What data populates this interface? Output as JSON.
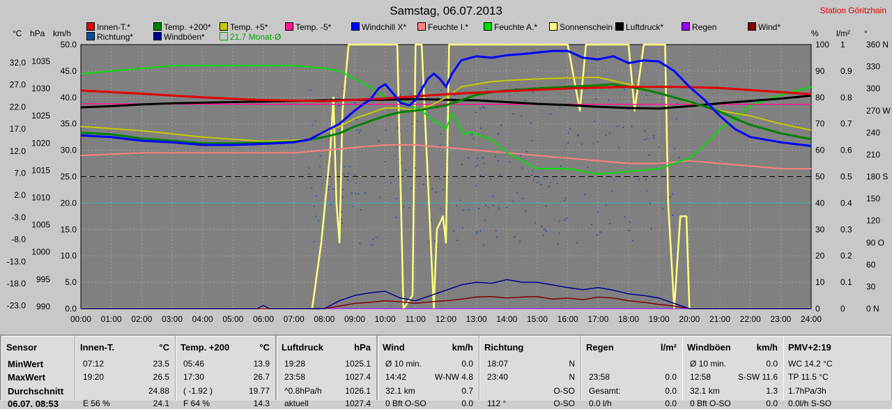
{
  "header": {
    "title": "Samstag, 06.07.2013",
    "station": "Station Göritzhain"
  },
  "legend": [
    {
      "label": "Innen-T.*",
      "color": "#e00000"
    },
    {
      "label": "Temp. +200*",
      "color": "#008000"
    },
    {
      "label": "Temp. +5*",
      "color": "#c8c800"
    },
    {
      "label": "Temp. -5*",
      "color": "#ff1493"
    },
    {
      "label": "Windchill X*",
      "color": "#0000ff"
    },
    {
      "label": "Feuchte I.*",
      "color": "#ff8080"
    },
    {
      "label": "Feuchte A.*",
      "color": "#00e000"
    },
    {
      "label": "Sonnenschein",
      "color": "#ffff80"
    },
    {
      "label": "Luftdruck*",
      "color": "#000000"
    },
    {
      "label": "Regen",
      "color": "#9900ff"
    },
    {
      "label": "Wind*",
      "color": "#800000"
    },
    {
      "label": "Richtung*",
      "color": "#0050a0"
    },
    {
      "label": "Windböen*",
      "color": "#000090"
    },
    {
      "label": "21.7 Monat-Ø",
      "color": "#00a000"
    }
  ],
  "units": {
    "temp": "°C",
    "pressure": "hPa",
    "wind": "km/h",
    "humidity": "%",
    "rain": "l/m²",
    "direction": "°"
  },
  "axes": {
    "temp_ticks": [
      "32.0",
      "27.0",
      "22.0",
      "17.0",
      "12.0",
      "7.0",
      "2.0",
      "-3.0",
      "-8.0",
      "-13.0",
      "-18.0",
      "-23.0"
    ],
    "pressure_ticks": [
      "1035",
      "1030",
      "1025",
      "1020",
      "1015",
      "1010",
      "1005",
      "1000",
      "995",
      "990"
    ],
    "wind_ticks": [
      "50.0",
      "45.0",
      "40.0",
      "35.0",
      "30.0",
      "25.0",
      "20.0",
      "15.0",
      "10.0",
      "5.0",
      "0.0"
    ],
    "humidity_ticks": [
      "100",
      "90",
      "80",
      "70",
      "60",
      "50",
      "40",
      "30",
      "20",
      "10",
      "0"
    ],
    "rain_ticks": [
      "1",
      "0.9",
      "0.8",
      "0.7",
      "0.6",
      "0.5",
      "0.4",
      "0.3",
      "0.2",
      "0.1",
      "0"
    ],
    "direction_ticks": [
      "360 N",
      "330",
      "300",
      "270 W",
      "240",
      "210",
      "180 S",
      "150",
      "120",
      "90 O",
      "60",
      "30",
      "0 N"
    ],
    "x_ticks": [
      "00:00",
      "01:00",
      "02:00",
      "03:00",
      "04:00",
      "05:00",
      "06:00",
      "07:00",
      "08:00",
      "09:00",
      "10:00",
      "11:00",
      "12:00",
      "13:00",
      "14:00",
      "15:00",
      "16:00",
      "17:00",
      "18:00",
      "19:00",
      "20:00",
      "21:00",
      "22:00",
      "23:00",
      "24:00"
    ]
  },
  "chart_data": {
    "type": "line",
    "title": "Samstag, 06.07.2013",
    "x_unit": "hour",
    "xlim": [
      0,
      24
    ],
    "ylim_wind": [
      0,
      50
    ],
    "ylim_temp": [
      -23,
      32
    ],
    "ylim_pressure": [
      990,
      1035
    ],
    "ylim_humidity": [
      0,
      100
    ],
    "grid": true,
    "reference_lines": [
      {
        "name": "21.7 Monat-Ø",
        "axis": "temp",
        "value": 21.7
      }
    ],
    "series": [
      {
        "name": "Innen-T.*",
        "axis": "wind",
        "x": [
          0,
          2,
          4,
          6,
          8,
          10,
          11,
          12,
          14,
          16,
          18,
          19.5,
          21,
          22,
          23,
          24
        ],
        "y": [
          41.3,
          40.7,
          40.0,
          39.5,
          39.3,
          39.8,
          40.2,
          40.6,
          41.2,
          41.7,
          42.0,
          42.0,
          41.8,
          41.4,
          41.0,
          40.6
        ]
      },
      {
        "name": "Temp. +200*",
        "axis": "wind",
        "x": [
          0,
          1,
          2,
          3,
          4,
          5,
          6,
          7,
          7.5,
          8,
          8.5,
          9,
          9.5,
          10,
          10.5,
          11,
          11.5,
          12,
          12.5,
          13,
          13.5,
          14,
          15,
          16,
          17,
          17.5,
          18,
          18.5,
          19,
          19.5,
          20,
          20.5,
          21,
          21.5,
          22,
          23,
          24
        ],
        "y": [
          33.3,
          33.0,
          32.2,
          31.8,
          31.3,
          31.3,
          31.4,
          31.6,
          32.0,
          32.5,
          33.2,
          34.5,
          35.5,
          36.5,
          37.2,
          37.5,
          38.0,
          38.5,
          39.5,
          40.5,
          41.0,
          41.3,
          41.7,
          42.0,
          42.3,
          42.5,
          42.0,
          41.5,
          40.8,
          40.0,
          39.2,
          38.3,
          37.3,
          36.0,
          34.8,
          33.2,
          32.1
        ]
      },
      {
        "name": "Temp. +5*",
        "axis": "wind",
        "x": [
          0,
          2,
          4,
          6,
          7.5,
          8,
          8.5,
          9,
          9.5,
          10,
          10.5,
          11,
          11.5,
          12,
          12.5,
          13,
          13.5,
          14,
          15,
          16,
          17,
          18,
          19,
          19.5,
          20,
          21,
          22,
          23,
          24
        ],
        "y": [
          34.5,
          33.7,
          32.5,
          31.7,
          32.0,
          33.3,
          34.5,
          36.0,
          37.0,
          38.0,
          38.0,
          37.5,
          38.5,
          40.0,
          42.0,
          42.5,
          43.0,
          43.2,
          43.5,
          43.7,
          43.8,
          42.5,
          40.8,
          40.0,
          39.0,
          37.5,
          36.5,
          35.0,
          33.8
        ]
      },
      {
        "name": "Temp. -5*",
        "axis": "wind",
        "x": [
          0,
          6,
          12,
          18,
          24
        ],
        "y": [
          38.8,
          38.7,
          38.7,
          38.7,
          38.7
        ]
      },
      {
        "name": "Windchill X*",
        "axis": "wind",
        "x": [
          0,
          1,
          2,
          3,
          4,
          5,
          6,
          7,
          7.5,
          8,
          8.5,
          8.8,
          9,
          9.3,
          9.5,
          9.8,
          10,
          10.3,
          10.5,
          10.8,
          11,
          11.2,
          11.4,
          11.6,
          11.8,
          12,
          12.2,
          12.5,
          13,
          13.5,
          14,
          14.5,
          15,
          15.5,
          16,
          16.5,
          17,
          17.5,
          18,
          18.5,
          19,
          19.5,
          20,
          20.5,
          21,
          21.5,
          22,
          23,
          24
        ],
        "y": [
          32.8,
          32.5,
          31.8,
          31.5,
          31.0,
          31.0,
          31.2,
          31.5,
          32.0,
          33.5,
          35.0,
          36.5,
          37.5,
          38.8,
          39.5,
          41.8,
          42.5,
          40.5,
          39.0,
          38.5,
          39.5,
          41.5,
          43.5,
          44.5,
          43.5,
          42.0,
          44.5,
          47.0,
          47.8,
          47.5,
          48.0,
          48.2,
          48.5,
          48.8,
          48.8,
          47.5,
          47.2,
          47.8,
          46.5,
          47.0,
          46.8,
          45.0,
          42.0,
          39.5,
          36.5,
          34.0,
          32.5,
          31.5,
          30.8
        ]
      },
      {
        "name": "Feuchte I.*",
        "axis": "humidity",
        "x": [
          0,
          2,
          4,
          6,
          7,
          8,
          9,
          10,
          11,
          12,
          13,
          14,
          15,
          16,
          17,
          18,
          19,
          20,
          21,
          22,
          23,
          24
        ],
        "y": [
          58,
          59,
          59,
          59,
          59,
          60,
          61,
          62,
          62,
          61,
          60,
          59,
          58,
          57,
          56,
          55,
          55,
          56,
          55,
          54,
          53,
          53
        ]
      },
      {
        "name": "Feuchte A.*",
        "axis": "humidity",
        "x": [
          0,
          1,
          2,
          3,
          4,
          5,
          6,
          7,
          8,
          8.5,
          9,
          9.5,
          10,
          10.5,
          11,
          11.3,
          11.6,
          11.8,
          12,
          12.2,
          12.4,
          12.6,
          12.8,
          13,
          13.5,
          14,
          15,
          16,
          17,
          18,
          19,
          19.5,
          20,
          20.5,
          21,
          21.5,
          22,
          23,
          24
        ],
        "y": [
          89,
          90,
          91,
          92,
          92,
          92,
          92,
          92,
          91,
          90,
          87,
          84,
          80,
          79,
          76,
          74,
          71,
          70,
          68,
          74,
          70,
          66,
          67,
          66,
          64,
          59,
          53,
          53,
          51,
          52,
          53,
          55,
          57,
          62,
          68,
          72,
          77,
          81,
          84
        ]
      },
      {
        "name": "Sonnenschein",
        "axis": "humidity",
        "x": [
          0,
          7.6,
          7.9,
          8.2,
          8.3,
          8.4,
          8.5,
          8.6,
          8.8,
          8.9,
          9.0,
          9.5,
          10.2,
          10.4,
          10.6,
          10.9,
          11.0,
          11.2,
          11.6,
          11.7,
          11.9,
          12.0,
          12.1,
          12.2,
          12.4,
          12.6,
          12.8,
          13,
          14,
          15,
          16,
          16.4,
          16.6,
          16.8,
          17,
          17.5,
          18,
          18.2,
          18.5,
          19,
          19.2,
          19.3,
          19.5,
          19.7,
          19.9,
          20,
          20.1,
          24
        ],
        "y": [
          0,
          0,
          25,
          60,
          80,
          40,
          25,
          75,
          100,
          100,
          100,
          100,
          100,
          100,
          0,
          5,
          100,
          100,
          0,
          30,
          35,
          25,
          100,
          100,
          100,
          100,
          100,
          100,
          100,
          100,
          100,
          75,
          100,
          100,
          100,
          100,
          100,
          75,
          100,
          100,
          100,
          40,
          0,
          35,
          35,
          0,
          0,
          0
        ]
      },
      {
        "name": "Luftdruck*",
        "axis": "pressure",
        "x": [
          0,
          1,
          2,
          3,
          4,
          5,
          6,
          7,
          8,
          9,
          10,
          11,
          12,
          13,
          14,
          15,
          16,
          17,
          18,
          19,
          20,
          21,
          22,
          23,
          24
        ],
        "y": [
          1024.3,
          1024.5,
          1024.8,
          1025.0,
          1025.1,
          1025.2,
          1025.3,
          1025.4,
          1025.5,
          1025.6,
          1025.6,
          1025.7,
          1025.6,
          1025.5,
          1025.2,
          1024.9,
          1024.7,
          1024.4,
          1024.2,
          1024.1,
          1024.5,
          1025.0,
          1025.4,
          1025.8,
          1026.3
        ]
      },
      {
        "name": "Regen",
        "axis": "rain",
        "x": [
          0,
          24
        ],
        "y": [
          0,
          0
        ]
      },
      {
        "name": "Wind*",
        "axis": "wind",
        "x": [
          0,
          8,
          8.5,
          9,
          9.5,
          10,
          10.5,
          11,
          11.5,
          12,
          12.5,
          13,
          13.5,
          14,
          14.5,
          15,
          15.5,
          16,
          16.5,
          17,
          17.5,
          18,
          18.5,
          19,
          19.5,
          20,
          24
        ],
        "y": [
          0,
          0,
          0.5,
          1.0,
          1.2,
          1.5,
          1.3,
          1.0,
          1.3,
          1.5,
          1.8,
          2.2,
          2.3,
          2.0,
          2.2,
          2.3,
          1.8,
          2.0,
          1.7,
          2.2,
          2.0,
          1.5,
          1.2,
          0.8,
          0.5,
          0,
          0
        ]
      },
      {
        "name": "Windböen*",
        "axis": "wind",
        "x": [
          0,
          5.8,
          6.0,
          6.2,
          8,
          8.5,
          9,
          9.5,
          10,
          10.5,
          11,
          11.5,
          12,
          12.5,
          13,
          13.5,
          14,
          14.5,
          15,
          15.5,
          16,
          16.5,
          17,
          17.5,
          18,
          18.5,
          19,
          19.5,
          20,
          24
        ],
        "y": [
          0,
          0,
          0.6,
          0,
          0,
          1.5,
          2.5,
          3.0,
          3.3,
          2.0,
          1.5,
          2.5,
          3.5,
          4.5,
          5.0,
          4.8,
          5.5,
          5.0,
          5.0,
          4.5,
          4.0,
          3.6,
          4.0,
          3.5,
          2.8,
          2.5,
          2.0,
          1.0,
          0,
          0
        ]
      }
    ]
  },
  "table": [
    {
      "header": "Sensor",
      "unit": "",
      "rows": [
        "MinWert",
        "MaxWert",
        "Durchschnitt",
        "06.07. 08:53"
      ]
    },
    {
      "header": "Innen-T.",
      "unit": "°C",
      "rows": [
        [
          "07:12",
          "23.5"
        ],
        [
          "19:20",
          "26.5"
        ],
        [
          "",
          "24.88"
        ],
        [
          "E 56 %",
          "24.1"
        ]
      ]
    },
    {
      "header": "Temp. +200",
      "unit": "°C",
      "rows": [
        [
          "05:46",
          "13.9"
        ],
        [
          "17:30",
          "26.7"
        ],
        [
          "( -1.92 )",
          "19.77"
        ],
        [
          "F 64 %",
          "14.3"
        ]
      ]
    },
    {
      "header": "Luftdruck",
      "unit": "hPa",
      "rows": [
        [
          "19:28",
          "1025.1"
        ],
        [
          "23:58",
          "1027.4"
        ],
        [
          "^0.8hPa/h",
          "1026.1"
        ],
        [
          "aktuell",
          "1027.4"
        ]
      ]
    },
    {
      "header": "Wind",
      "unit": "km/h",
      "rows": [
        [
          "Ø 10 min.",
          "0.0"
        ],
        [
          "14:42",
          "W-NW 4.8"
        ],
        [
          "32.1 km",
          "0.7"
        ],
        [
          "0 Bft O-SO",
          "0.0"
        ]
      ]
    },
    {
      "header": "Richtung",
      "unit": "",
      "rows": [
        [
          "18:07",
          "N"
        ],
        [
          "23:40",
          "N"
        ],
        [
          "",
          "O-SO"
        ],
        [
          "112 °",
          "O-SO"
        ]
      ]
    },
    {
      "header": "Regen",
      "unit": "l/m²",
      "rows": [
        [
          "",
          ""
        ],
        [
          "23:58",
          "0.0"
        ],
        [
          "Gesamt:",
          "0.0"
        ],
        [
          "0.0 l/h",
          "0.0"
        ]
      ]
    },
    {
      "header": "Windböen",
      "unit": "km/h",
      "rows": [
        [
          "Ø 10 min.",
          "0.0"
        ],
        [
          "12:58",
          "S-SW 11.6"
        ],
        [
          "32.1 km",
          "1.3"
        ],
        [
          "0 Bft O-SO",
          "0.0"
        ]
      ]
    },
    {
      "header": "PMV+2:19",
      "unit": "",
      "rows": [
        "WC 14.2 °C",
        "TP 11.5 °C",
        "1.7hPa/3h",
        "0.0l/h S-SO"
      ]
    }
  ]
}
